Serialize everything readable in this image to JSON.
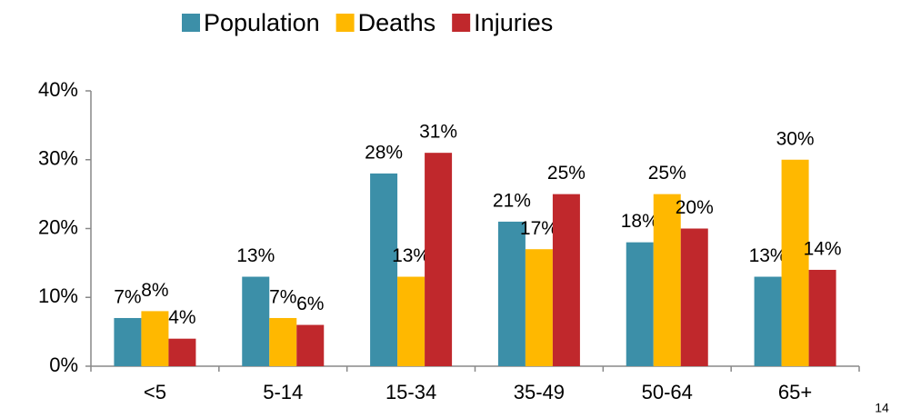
{
  "chart_data": {
    "type": "bar",
    "categories": [
      "<5",
      "5-14",
      "15-34",
      "35-49",
      "50-64",
      "65+"
    ],
    "series": [
      {
        "name": "Population",
        "color": "#3c8fa8",
        "values": [
          7,
          13,
          28,
          21,
          18,
          13
        ],
        "value_labels": [
          "7%",
          "13%",
          "28%",
          "21%",
          "18%",
          "13%"
        ]
      },
      {
        "name": "Deaths",
        "color": "#ffb800",
        "values": [
          8,
          7,
          13,
          17,
          25,
          30
        ],
        "value_labels": [
          "8%",
          "7%",
          "13%",
          "17%",
          "25%",
          "30%"
        ]
      },
      {
        "name": "Injuries",
        "color": "#c0282c",
        "values": [
          4,
          6,
          31,
          25,
          20,
          14
        ],
        "value_labels": [
          "4%",
          "6%",
          "31%",
          "25%",
          "20%",
          "14%"
        ]
      }
    ],
    "ylim": [
      0,
      40
    ],
    "yticks": [
      {
        "value": 0,
        "label": "0%"
      },
      {
        "value": 10,
        "label": "10%"
      },
      {
        "value": 20,
        "label": "20%"
      },
      {
        "value": 30,
        "label": "30%"
      },
      {
        "value": 40,
        "label": "40%"
      }
    ],
    "grid": false,
    "legend": "top"
  },
  "page_number": "14"
}
